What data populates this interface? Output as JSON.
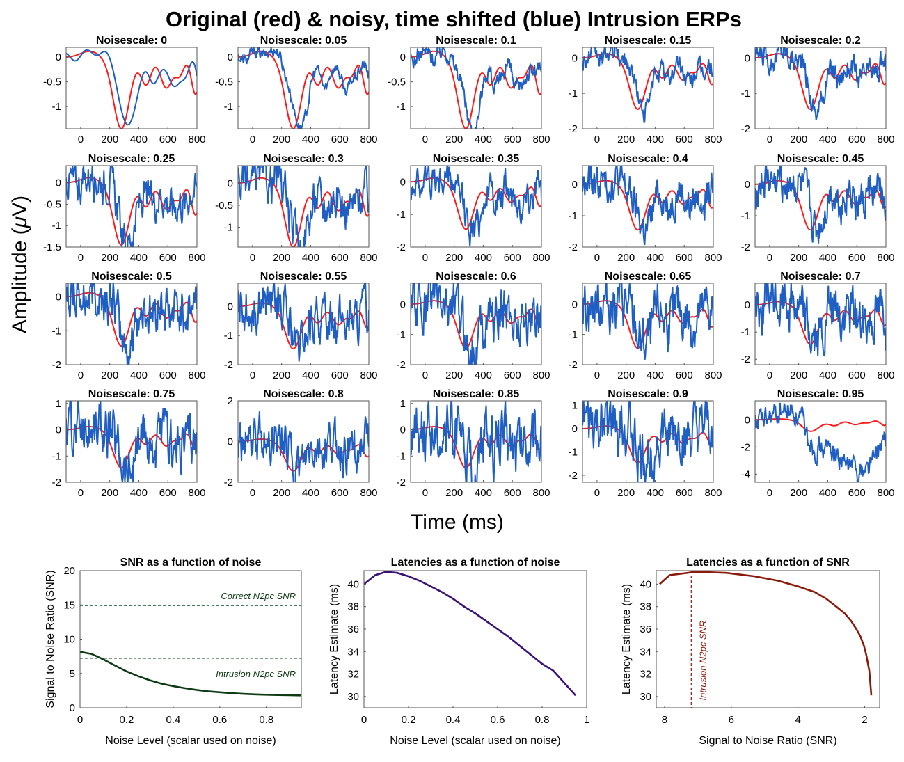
{
  "figure": {
    "title": "Original (red) & noisy, time shifted (blue) Intrusion ERPs",
    "ylabel_prefix": "Amplitude (",
    "ylabel_mu": "μ",
    "ylabel_suffix": "V)",
    "xlabel": "Time (ms)"
  },
  "colors": {
    "red": "#ff1a1a",
    "blue": "#1f5fc4",
    "green": "#0e3a14",
    "purple": "#3b1078",
    "darkred": "#8b1a0a",
    "grid_dash_green": "#2f6b46"
  },
  "chart_data": [
    {
      "type": "line",
      "kind": "erp-grid",
      "x_ticks": [
        0,
        200,
        400,
        600,
        800
      ],
      "xlim": [
        -100,
        800
      ],
      "series_names": [
        "original",
        "noisy shifted"
      ],
      "panels": [
        {
          "title": "Noisescale: 0",
          "ylim": [
            -1.45,
            0.2
          ],
          "yticks": [
            {
              "v": 0,
              "label": "0"
            },
            {
              "v": -0.5,
              "label": "-0.5"
            },
            {
              "v": -1,
              "label": "-1"
            }
          ],
          "noise": 0.0,
          "spike": 1.0
        },
        {
          "title": "Noisescale: 0.05",
          "ylim": [
            -1.45,
            0.2
          ],
          "yticks": [
            {
              "v": 0,
              "label": "0"
            },
            {
              "v": -0.5,
              "label": "-0.5"
            },
            {
              "v": -1,
              "label": "-1"
            }
          ],
          "noise": 0.05,
          "spike": 1.0
        },
        {
          "title": "Noisescale: 0.1",
          "ylim": [
            -1.45,
            0.2
          ],
          "yticks": [
            {
              "v": 0,
              "label": "0"
            },
            {
              "v": -0.5,
              "label": "-0.5"
            },
            {
              "v": -1,
              "label": "-1"
            }
          ],
          "noise": 0.08,
          "spike": 1.0
        },
        {
          "title": "Noisescale: 0.15",
          "ylim": [
            -2,
            0.3
          ],
          "yticks": [
            {
              "v": 0,
              "label": "0"
            },
            {
              "v": -1,
              "label": "-1"
            },
            {
              "v": -2,
              "label": "-2"
            }
          ],
          "noise": 0.12,
          "spike": 1.0
        },
        {
          "title": "Noisescale: 0.2",
          "ylim": [
            -2,
            0.3
          ],
          "yticks": [
            {
              "v": 0,
              "label": "0"
            },
            {
              "v": -1,
              "label": "-1"
            },
            {
              "v": -2,
              "label": "-2"
            }
          ],
          "noise": 0.15,
          "spike": 1.0
        },
        {
          "title": "Noisescale: 0.25",
          "ylim": [
            -1.5,
            0.4
          ],
          "yticks": [
            {
              "v": 0,
              "label": "0"
            },
            {
              "v": -0.5,
              "label": "-0.5"
            },
            {
              "v": -1,
              "label": "-1"
            },
            {
              "v": -1.5,
              "label": "-1.5"
            }
          ],
          "noise": 0.18,
          "spike": 1.0
        },
        {
          "title": "Noisescale: 0.3",
          "ylim": [
            -1.45,
            0.4
          ],
          "yticks": [
            {
              "v": 0,
              "label": "0"
            },
            {
              "v": -0.5,
              "label": "-0.5"
            },
            {
              "v": -1,
              "label": "-1"
            }
          ],
          "noise": 0.2,
          "spike": 1.0
        },
        {
          "title": "Noisescale: 0.35",
          "ylim": [
            -2,
            0.5
          ],
          "yticks": [
            {
              "v": 0,
              "label": "0"
            },
            {
              "v": -1,
              "label": "-1"
            },
            {
              "v": -2,
              "label": "-2"
            }
          ],
          "noise": 0.22,
          "spike": 1.0
        },
        {
          "title": "Noisescale: 0.4",
          "ylim": [
            -2,
            0.6
          ],
          "yticks": [
            {
              "v": 0,
              "label": "0"
            },
            {
              "v": -1,
              "label": "-1"
            },
            {
              "v": -2,
              "label": "-2"
            }
          ],
          "noise": 0.25,
          "spike": 1.0
        },
        {
          "title": "Noisescale: 0.45",
          "ylim": [
            -2,
            0.6
          ],
          "yticks": [
            {
              "v": 0,
              "label": "0"
            },
            {
              "v": -1,
              "label": "-1"
            },
            {
              "v": -2,
              "label": "-2"
            }
          ],
          "noise": 0.27,
          "spike": 1.0
        },
        {
          "title": "Noisescale: 0.5",
          "ylim": [
            -2,
            0.4
          ],
          "yticks": [
            {
              "v": 0,
              "label": "0"
            },
            {
              "v": -1,
              "label": "-1"
            },
            {
              "v": -2,
              "label": "-2"
            }
          ],
          "noise": 0.3,
          "spike": 1.0
        },
        {
          "title": "Noisescale: 0.55",
          "ylim": [
            -2,
            0.8
          ],
          "yticks": [
            {
              "v": 0,
              "label": "0"
            },
            {
              "v": -1,
              "label": "-1"
            },
            {
              "v": -2,
              "label": "-2"
            }
          ],
          "noise": 0.32,
          "spike": 1.0
        },
        {
          "title": "Noisescale: 0.6",
          "ylim": [
            -2,
            0.7
          ],
          "yticks": [
            {
              "v": 0,
              "label": "0"
            },
            {
              "v": -1,
              "label": "-1"
            },
            {
              "v": -2,
              "label": "-2"
            }
          ],
          "noise": 0.35,
          "spike": 1.0
        },
        {
          "title": "Noisescale: 0.65",
          "ylim": [
            -2,
            0.7
          ],
          "yticks": [
            {
              "v": 0,
              "label": "0"
            },
            {
              "v": -1,
              "label": "-1"
            },
            {
              "v": -2,
              "label": "-2"
            }
          ],
          "noise": 0.37,
          "spike": 1.0
        },
        {
          "title": "Noisescale: 0.7",
          "ylim": [
            -2.2,
            0.8
          ],
          "yticks": [
            {
              "v": 0,
              "label": "0"
            },
            {
              "v": -1,
              "label": "-1"
            },
            {
              "v": -2,
              "label": "-2"
            }
          ],
          "noise": 0.4,
          "spike": 1.0
        },
        {
          "title": "Noisescale: 0.75",
          "ylim": [
            -2,
            1.1
          ],
          "yticks": [
            {
              "v": 1,
              "label": "1"
            },
            {
              "v": 0,
              "label": "0"
            },
            {
              "v": -1,
              "label": "-1"
            },
            {
              "v": -2,
              "label": "-2"
            }
          ],
          "noise": 0.42,
          "spike": 1.0
        },
        {
          "title": "Noisescale: 0.8",
          "ylim": [
            -2,
            2
          ],
          "yticks": [
            {
              "v": 2,
              "label": "2"
            },
            {
              "v": 0,
              "label": "0"
            },
            {
              "v": -2,
              "label": "-2"
            }
          ],
          "noise": 0.45,
          "spike": 1.0
        },
        {
          "title": "Noisescale: 0.85",
          "ylim": [
            -2,
            1.1
          ],
          "yticks": [
            {
              "v": 1,
              "label": "1"
            },
            {
              "v": 0,
              "label": "0"
            },
            {
              "v": -1,
              "label": "-1"
            },
            {
              "v": -2,
              "label": "-2"
            }
          ],
          "noise": 0.47,
          "spike": 1.0
        },
        {
          "title": "Noisescale: 0.9",
          "ylim": [
            -2.3,
            1.2
          ],
          "yticks": [
            {
              "v": 1,
              "label": "1"
            },
            {
              "v": 0,
              "label": "0"
            },
            {
              "v": -1,
              "label": "-1"
            },
            {
              "v": -2,
              "label": "-2"
            }
          ],
          "noise": 0.5,
          "spike": 1.0
        },
        {
          "title": "Noisescale: 0.95",
          "ylim": [
            -4.6,
            1.4
          ],
          "yticks": [
            {
              "v": 0,
              "label": "0"
            },
            {
              "v": -2,
              "label": "-2"
            },
            {
              "v": -4,
              "label": "-4"
            }
          ],
          "noise": 0.35,
          "spike": 1.0,
          "drift": true
        }
      ]
    },
    {
      "type": "line",
      "title": "SNR as a function of noise",
      "xlabel": "Noise Level (scalar used on noise)",
      "ylabel": "Signal to Noise Ratio (SNR)",
      "xlim": [
        0,
        0.95
      ],
      "ylim": [
        0,
        20
      ],
      "xticks": [
        0,
        0.2,
        0.4,
        0.6,
        0.8
      ],
      "yticks": [
        0,
        5,
        10,
        15,
        20
      ],
      "x": [
        0,
        0.05,
        0.1,
        0.15,
        0.2,
        0.25,
        0.3,
        0.35,
        0.4,
        0.45,
        0.5,
        0.55,
        0.6,
        0.65,
        0.7,
        0.75,
        0.8,
        0.85,
        0.9,
        0.95
      ],
      "y": [
        8.15,
        7.85,
        7.05,
        6.15,
        5.3,
        4.6,
        4.0,
        3.5,
        3.15,
        2.85,
        2.6,
        2.4,
        2.25,
        2.12,
        2.02,
        1.95,
        1.9,
        1.86,
        1.83,
        1.8
      ],
      "hlines": [
        {
          "y": 14.9,
          "label": "Correct N2pc SNR"
        },
        {
          "y": 7.2,
          "label": "Intrusion N2pc SNR"
        }
      ]
    },
    {
      "type": "line",
      "title": "Latencies as a function of noise",
      "xlabel": "Noise Level (scalar used on noise)",
      "ylabel": "Latency Estimate (ms)",
      "xlim": [
        0,
        1
      ],
      "ylim": [
        29,
        41.2
      ],
      "xticks": [
        0,
        0.2,
        0.4,
        0.6,
        0.8,
        1
      ],
      "yticks": [
        30,
        32,
        34,
        36,
        38,
        40
      ],
      "x": [
        0,
        0.05,
        0.1,
        0.15,
        0.2,
        0.25,
        0.3,
        0.35,
        0.4,
        0.45,
        0.5,
        0.55,
        0.6,
        0.65,
        0.7,
        0.75,
        0.8,
        0.85,
        0.9,
        0.95
      ],
      "y": [
        40.0,
        40.8,
        41.1,
        41.0,
        40.7,
        40.3,
        39.8,
        39.3,
        38.7,
        38.0,
        37.4,
        36.7,
        36.0,
        35.3,
        34.5,
        33.7,
        32.9,
        32.3,
        31.2,
        30.1
      ]
    },
    {
      "type": "line",
      "title": "Latencies as a function of SNR",
      "xlabel": "Signal to Noise Ratio (SNR)",
      "ylabel": "Latency Estimate (ms)",
      "xlim": [
        8.25,
        1.55
      ],
      "ylim": [
        29,
        41.2
      ],
      "xticks": [
        8,
        6,
        4,
        2
      ],
      "yticks": [
        30,
        32,
        34,
        36,
        38,
        40
      ],
      "x": [
        8.15,
        7.85,
        7.05,
        6.15,
        5.3,
        4.6,
        4.0,
        3.5,
        3.15,
        2.85,
        2.6,
        2.4,
        2.25,
        2.12,
        2.02,
        1.95,
        1.9,
        1.86,
        1.83,
        1.8
      ],
      "y": [
        40.0,
        40.8,
        41.1,
        41.0,
        40.7,
        40.3,
        39.8,
        39.3,
        38.7,
        38.0,
        37.4,
        36.7,
        36.0,
        35.3,
        34.5,
        33.7,
        32.9,
        32.3,
        31.2,
        30.1
      ],
      "vline": {
        "x": 7.2,
        "label": "Intrusion N2pc SNR"
      }
    }
  ]
}
